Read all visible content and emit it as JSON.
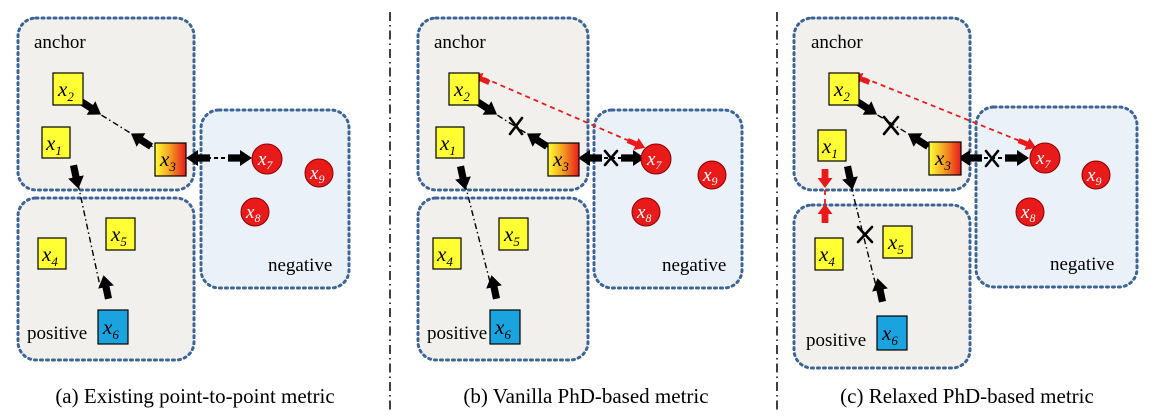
{
  "panels": [
    {
      "caption": "(a) Existing point-to-point metric",
      "anchor_label": "anchor",
      "positive_label": "positive",
      "negative_label": "negative"
    },
    {
      "caption": "(b) Vanilla PhD-based metric",
      "anchor_label": "anchor",
      "negative_label": "negative",
      "positive_label": "positive"
    },
    {
      "caption": "(c) Relaxed PhD-based metric",
      "anchor_label": "anchor",
      "negative_label": "negative",
      "positive_label": "positive"
    }
  ],
  "node_letter": "x",
  "node_subscripts": [
    "1",
    "2",
    "3",
    "4",
    "5",
    "6",
    "7",
    "8",
    "9"
  ],
  "colors": {
    "anchor_positive_fill": "#f2f0ed",
    "negative_fill": "#ebf1f8",
    "border": "#3c6496",
    "yellow_node": "#ffff33",
    "blue_node": "#1aa3de",
    "red_node": "#e81a1a",
    "red_arrow": "#e81a1a"
  }
}
